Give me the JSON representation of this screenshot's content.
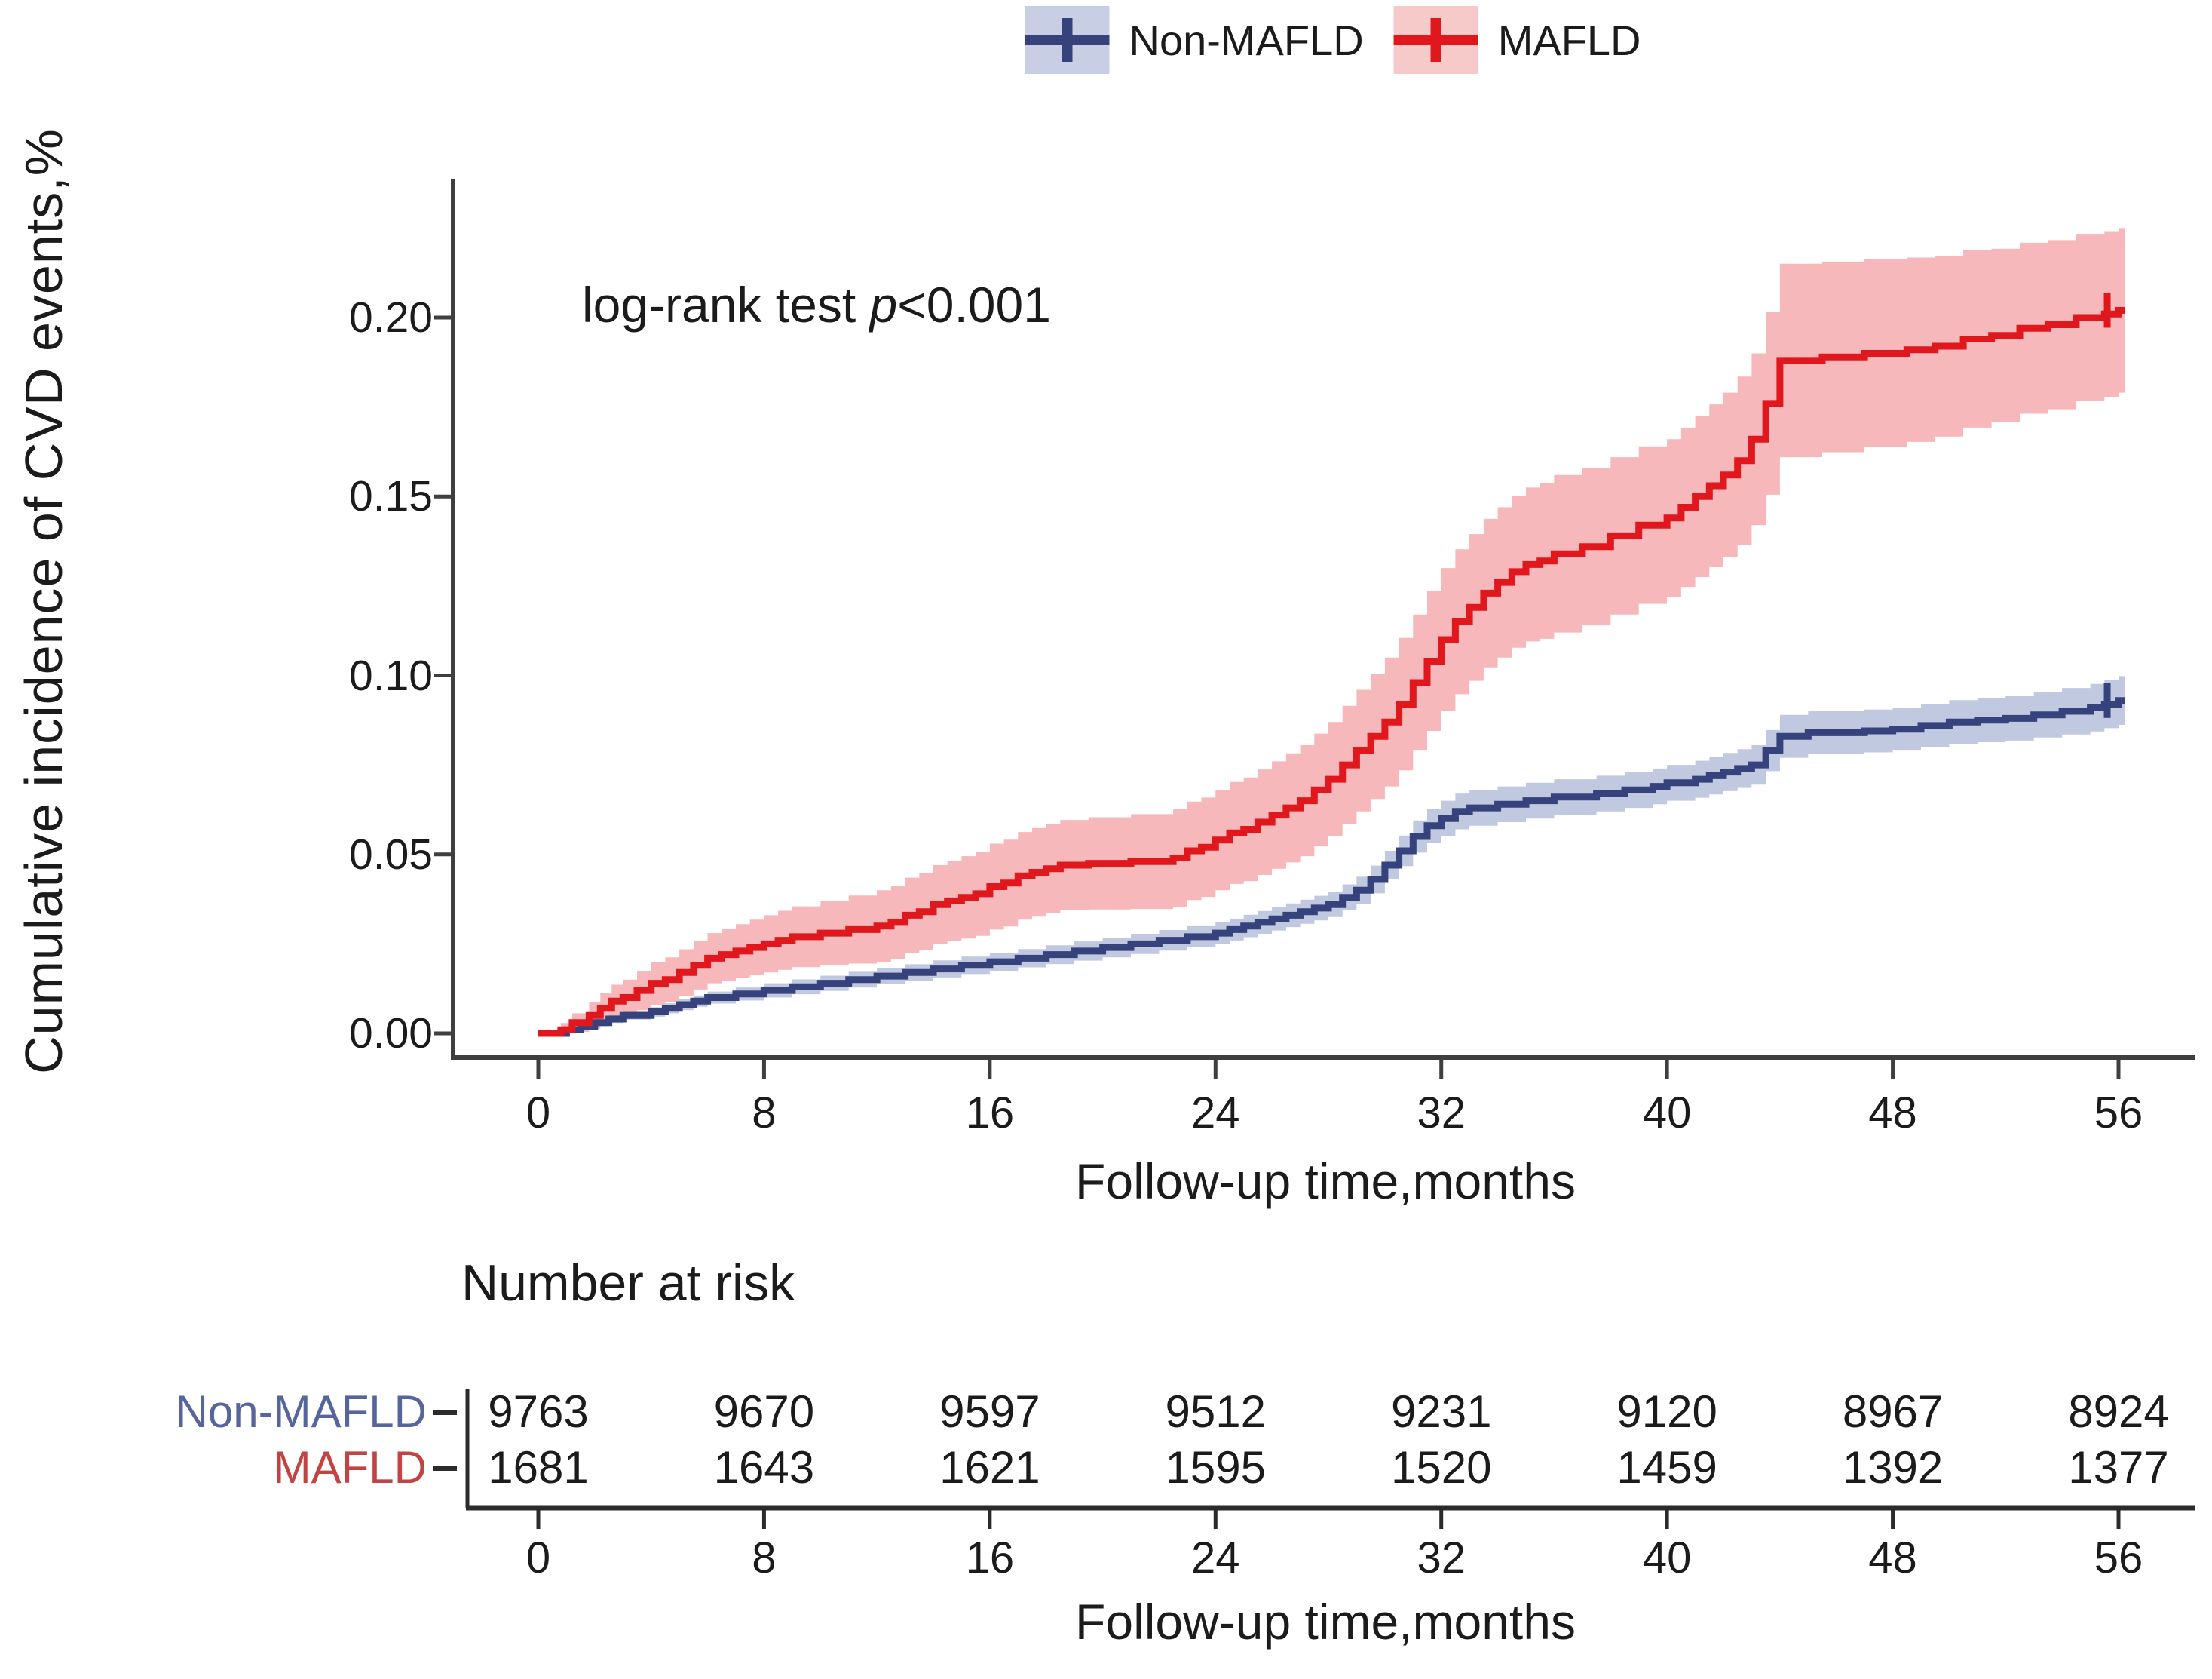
{
  "legend": {
    "items": [
      {
        "label": "Non-MAFLD",
        "line_color": "#35427C",
        "fill_color": "#C8CFE4"
      },
      {
        "label": "MAFLD",
        "line_color": "#E0181D",
        "fill_color": "#F7CACA"
      }
    ]
  },
  "annotation": {
    "text_before": "log-rank test ",
    "p": "p",
    "text_after": "<0.001"
  },
  "y_axis": {
    "title": "Cumulative incidence of CVD events,%",
    "tick_labels": [
      "0.00",
      "0.05",
      "0.10",
      "0.15",
      "0.20"
    ],
    "tick_values": [
      0,
      0.05,
      0.1,
      0.15,
      0.2
    ]
  },
  "x_axis": {
    "title": "Follow-up time,months",
    "tick_values": [
      0,
      8,
      16,
      24,
      32,
      40,
      48,
      56
    ]
  },
  "risk_table": {
    "title": "Number at risk",
    "rows": [
      {
        "label": "Non-MAFLD",
        "label_color": "#56659C",
        "values": [
          "9763",
          "9670",
          "9597",
          "9512",
          "9231",
          "9120",
          "8967",
          "8924"
        ]
      },
      {
        "label": "MAFLD",
        "label_color": "#C14343",
        "values": [
          "1681",
          "1643",
          "1621",
          "1595",
          "1520",
          "1459",
          "1392",
          "1377"
        ]
      }
    ],
    "x_axis": {
      "title": "Follow-up time,months",
      "tick_values": [
        0,
        8,
        16,
        24,
        32,
        40,
        48,
        56
      ]
    }
  },
  "chart_data": {
    "type": "line",
    "subtype": "cumulative-incidence-step-km",
    "title": "",
    "xlabel": "Follow-up time,months",
    "ylabel": "Cumulative incidence of CVD events,%",
    "xlim": [
      0,
      56
    ],
    "ylim": [
      0,
      0.24
    ],
    "x_ticks": [
      0,
      8,
      16,
      24,
      32,
      40,
      48,
      56
    ],
    "y_ticks": [
      0,
      0.05,
      0.1,
      0.15,
      0.2
    ],
    "grid": false,
    "legend_position": "top-center",
    "annotation": "log-rank test p<0.001",
    "series": [
      {
        "name": "Non-MAFLD",
        "color": "#35427C",
        "ci_fill": "#6B7FB8",
        "ci_opacity": 0.42,
        "censor_at_end": true,
        "number_at_risk": [
          9763,
          9670,
          9597,
          9512,
          9231,
          9120,
          8967,
          8924
        ],
        "points": [
          [
            0,
            0
          ],
          [
            1,
            0.001
          ],
          [
            1.5,
            0.002
          ],
          [
            2,
            0.003
          ],
          [
            2.5,
            0.004
          ],
          [
            3,
            0.005
          ],
          [
            4,
            0.006
          ],
          [
            4.5,
            0.007
          ],
          [
            5,
            0.008
          ],
          [
            5.5,
            0.009
          ],
          [
            6,
            0.01
          ],
          [
            7,
            0.011
          ],
          [
            8,
            0.012
          ],
          [
            9,
            0.013
          ],
          [
            10,
            0.014
          ],
          [
            11,
            0.015
          ],
          [
            12,
            0.016
          ],
          [
            13,
            0.017
          ],
          [
            14,
            0.018
          ],
          [
            15,
            0.019
          ],
          [
            16,
            0.02
          ],
          [
            17,
            0.021
          ],
          [
            18,
            0.022
          ],
          [
            19,
            0.023
          ],
          [
            20,
            0.024
          ],
          [
            21,
            0.025
          ],
          [
            22,
            0.026
          ],
          [
            23,
            0.027
          ],
          [
            24,
            0.028
          ],
          [
            24.5,
            0.029
          ],
          [
            25,
            0.03
          ],
          [
            25.5,
            0.031
          ],
          [
            26,
            0.032
          ],
          [
            26.5,
            0.033
          ],
          [
            27,
            0.034
          ],
          [
            27.5,
            0.035
          ],
          [
            28,
            0.036
          ],
          [
            28.5,
            0.038
          ],
          [
            29,
            0.04
          ],
          [
            29.5,
            0.043
          ],
          [
            30,
            0.047
          ],
          [
            30.5,
            0.051
          ],
          [
            31,
            0.055
          ],
          [
            31.5,
            0.058
          ],
          [
            32,
            0.06
          ],
          [
            32.5,
            0.062
          ],
          [
            33,
            0.063
          ],
          [
            34,
            0.064
          ],
          [
            35,
            0.065
          ],
          [
            36,
            0.066
          ],
          [
            37.5,
            0.067
          ],
          [
            38.5,
            0.068
          ],
          [
            39.5,
            0.069
          ],
          [
            40,
            0.07
          ],
          [
            41,
            0.071
          ],
          [
            41.5,
            0.072
          ],
          [
            42,
            0.073
          ],
          [
            42.5,
            0.074
          ],
          [
            43,
            0.075
          ],
          [
            43.5,
            0.079
          ],
          [
            44,
            0.083
          ],
          [
            45,
            0.084
          ],
          [
            47,
            0.0845
          ],
          [
            48,
            0.085
          ],
          [
            49,
            0.086
          ],
          [
            50,
            0.087
          ],
          [
            51,
            0.0875
          ],
          [
            52,
            0.088
          ],
          [
            53,
            0.089
          ],
          [
            54,
            0.09
          ],
          [
            55,
            0.091
          ],
          [
            55.5,
            0.092
          ],
          [
            56,
            0.093
          ]
        ],
        "ci_halfwidth": [
          [
            0,
            0.0003
          ],
          [
            2,
            0.001
          ],
          [
            8,
            0.002
          ],
          [
            16,
            0.0025
          ],
          [
            24,
            0.003
          ],
          [
            28,
            0.0035
          ],
          [
            30,
            0.004
          ],
          [
            32,
            0.005
          ],
          [
            36,
            0.005
          ],
          [
            40,
            0.005
          ],
          [
            43,
            0.0055
          ],
          [
            44,
            0.006
          ],
          [
            48,
            0.006
          ],
          [
            52,
            0.0062
          ],
          [
            56,
            0.0068
          ]
        ]
      },
      {
        "name": "MAFLD",
        "color": "#E0181D",
        "ci_fill": "#E8454A",
        "ci_opacity": 0.38,
        "censor_at_end": true,
        "number_at_risk": [
          1681,
          1643,
          1621,
          1595,
          1520,
          1459,
          1392,
          1377
        ],
        "points": [
          [
            0,
            0
          ],
          [
            0.8,
            0.001
          ],
          [
            1.2,
            0.003
          ],
          [
            1.8,
            0.005
          ],
          [
            2.2,
            0.007
          ],
          [
            2.6,
            0.009
          ],
          [
            3,
            0.01
          ],
          [
            3.5,
            0.012
          ],
          [
            4,
            0.014
          ],
          [
            4.5,
            0.015
          ],
          [
            5,
            0.017
          ],
          [
            5.5,
            0.019
          ],
          [
            6,
            0.021
          ],
          [
            6.5,
            0.022
          ],
          [
            7,
            0.023
          ],
          [
            7.5,
            0.024
          ],
          [
            8,
            0.025
          ],
          [
            8.5,
            0.026
          ],
          [
            9,
            0.027
          ],
          [
            10,
            0.028
          ],
          [
            11,
            0.029
          ],
          [
            12,
            0.03
          ],
          [
            12.5,
            0.031
          ],
          [
            13,
            0.033
          ],
          [
            13.5,
            0.034
          ],
          [
            14,
            0.036
          ],
          [
            14.5,
            0.037
          ],
          [
            15,
            0.038
          ],
          [
            15.5,
            0.039
          ],
          [
            16,
            0.041
          ],
          [
            16.5,
            0.042
          ],
          [
            17,
            0.044
          ],
          [
            17.5,
            0.045
          ],
          [
            18,
            0.046
          ],
          [
            18.5,
            0.047
          ],
          [
            19.5,
            0.0475
          ],
          [
            21,
            0.048
          ],
          [
            22.5,
            0.049
          ],
          [
            23,
            0.051
          ],
          [
            23.5,
            0.052
          ],
          [
            24,
            0.054
          ],
          [
            24.5,
            0.056
          ],
          [
            25,
            0.057
          ],
          [
            25.5,
            0.059
          ],
          [
            26,
            0.061
          ],
          [
            26.5,
            0.063
          ],
          [
            27,
            0.065
          ],
          [
            27.5,
            0.068
          ],
          [
            28,
            0.071
          ],
          [
            28.5,
            0.075
          ],
          [
            29,
            0.079
          ],
          [
            29.5,
            0.083
          ],
          [
            30,
            0.087
          ],
          [
            30.5,
            0.092
          ],
          [
            31,
            0.098
          ],
          [
            31.5,
            0.104
          ],
          [
            32,
            0.11
          ],
          [
            32.5,
            0.115
          ],
          [
            33,
            0.119
          ],
          [
            33.5,
            0.123
          ],
          [
            34,
            0.126
          ],
          [
            34.5,
            0.129
          ],
          [
            35,
            0.131
          ],
          [
            35.5,
            0.132
          ],
          [
            36,
            0.134
          ],
          [
            37,
            0.136
          ],
          [
            38,
            0.139
          ],
          [
            39,
            0.142
          ],
          [
            40,
            0.144
          ],
          [
            40.5,
            0.147
          ],
          [
            41,
            0.15
          ],
          [
            41.5,
            0.153
          ],
          [
            42,
            0.156
          ],
          [
            42.5,
            0.16
          ],
          [
            43,
            0.166
          ],
          [
            43.5,
            0.176
          ],
          [
            44,
            0.188
          ],
          [
            45.5,
            0.189
          ],
          [
            47,
            0.19
          ],
          [
            48.5,
            0.191
          ],
          [
            49.5,
            0.192
          ],
          [
            50.5,
            0.194
          ],
          [
            51.5,
            0.195
          ],
          [
            52.5,
            0.197
          ],
          [
            53.5,
            0.198
          ],
          [
            54.5,
            0.2
          ],
          [
            55.5,
            0.201
          ],
          [
            56,
            0.202
          ]
        ],
        "ci_halfwidth": [
          [
            0,
            0.0005
          ],
          [
            2,
            0.004
          ],
          [
            4,
            0.006
          ],
          [
            8,
            0.008
          ],
          [
            12,
            0.01
          ],
          [
            16,
            0.012
          ],
          [
            20,
            0.013
          ],
          [
            24,
            0.014
          ],
          [
            28,
            0.016
          ],
          [
            30,
            0.018
          ],
          [
            32,
            0.02
          ],
          [
            34,
            0.021
          ],
          [
            36,
            0.022
          ],
          [
            40,
            0.022
          ],
          [
            42,
            0.023
          ],
          [
            43,
            0.024
          ],
          [
            44,
            0.027
          ],
          [
            48,
            0.026
          ],
          [
            52,
            0.024
          ],
          [
            56,
            0.023
          ]
        ]
      }
    ]
  }
}
